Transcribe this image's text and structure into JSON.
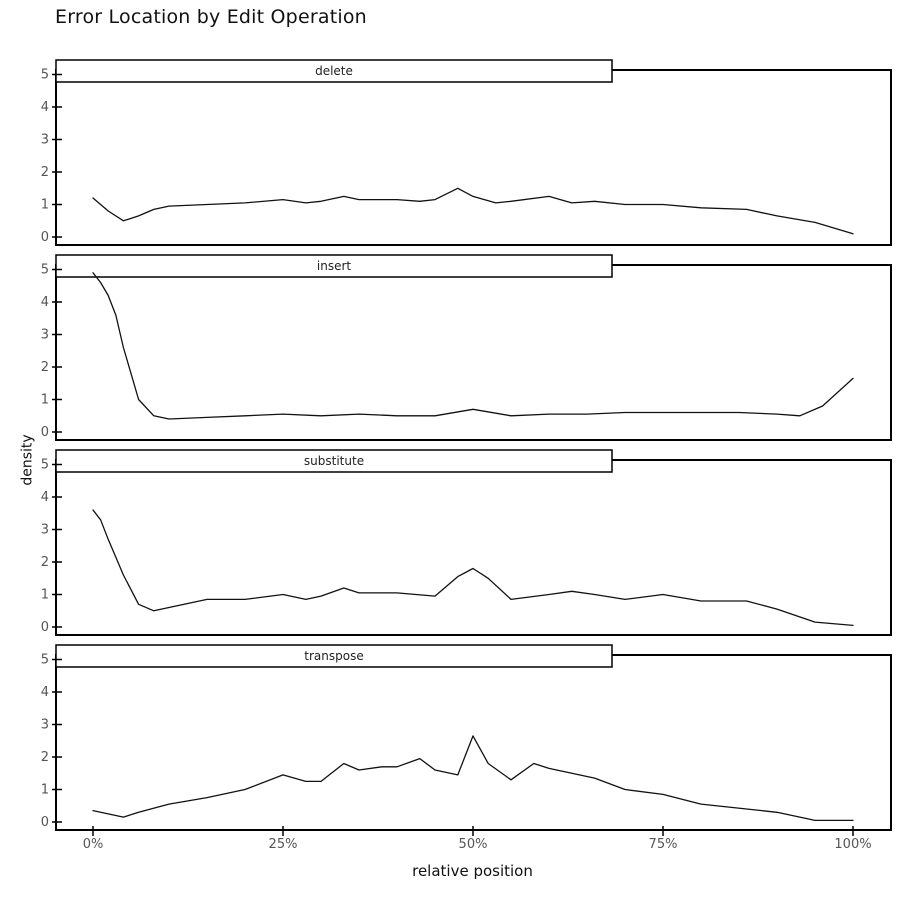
{
  "title": "Error Location by Edit Operation",
  "colors": {
    "line": "#111111",
    "frame": "#000000",
    "strip": "#ffffff",
    "tick_text": "#555555"
  },
  "chart_data": {
    "type": "line",
    "title": "Error Location by Edit Operation",
    "xlabel": "relative position",
    "ylabel": "density",
    "xlim": [
      0,
      1
    ],
    "ylim": [
      0,
      5
    ],
    "x_ticks": [
      0,
      0.25,
      0.5,
      0.75,
      1.0
    ],
    "x_tick_labels": [
      "0%",
      "25%",
      "50%",
      "75%",
      "100%"
    ],
    "y_ticks": [
      0,
      1,
      2,
      3,
      4,
      5
    ],
    "y_tick_labels": [
      "0",
      "1",
      "2",
      "3",
      "4",
      "5"
    ],
    "grid": false,
    "legend": "none",
    "facets": [
      {
        "name": "delete",
        "x": [
          0.0,
          0.02,
          0.04,
          0.06,
          0.08,
          0.1,
          0.15,
          0.2,
          0.25,
          0.28,
          0.3,
          0.33,
          0.35,
          0.38,
          0.4,
          0.43,
          0.45,
          0.48,
          0.5,
          0.53,
          0.55,
          0.6,
          0.63,
          0.66,
          0.7,
          0.75,
          0.8,
          0.86,
          0.9,
          0.95,
          1.0
        ],
        "y": [
          1.2,
          0.8,
          0.5,
          0.65,
          0.85,
          0.95,
          1.0,
          1.05,
          1.15,
          1.05,
          1.1,
          1.25,
          1.15,
          1.15,
          1.15,
          1.1,
          1.15,
          1.5,
          1.25,
          1.05,
          1.1,
          1.25,
          1.05,
          1.1,
          1.0,
          1.0,
          0.9,
          0.85,
          0.65,
          0.45,
          0.1
        ]
      },
      {
        "name": "insert",
        "x": [
          0.0,
          0.01,
          0.02,
          0.03,
          0.04,
          0.06,
          0.08,
          0.1,
          0.15,
          0.2,
          0.25,
          0.3,
          0.35,
          0.4,
          0.45,
          0.5,
          0.55,
          0.6,
          0.65,
          0.7,
          0.75,
          0.8,
          0.85,
          0.9,
          0.93,
          0.96,
          1.0
        ],
        "y": [
          4.9,
          4.6,
          4.2,
          3.6,
          2.6,
          1.0,
          0.5,
          0.4,
          0.45,
          0.5,
          0.55,
          0.5,
          0.55,
          0.5,
          0.5,
          0.7,
          0.5,
          0.55,
          0.55,
          0.6,
          0.6,
          0.6,
          0.6,
          0.55,
          0.5,
          0.8,
          1.65
        ]
      },
      {
        "name": "substitute",
        "x": [
          0.0,
          0.01,
          0.02,
          0.04,
          0.06,
          0.08,
          0.1,
          0.15,
          0.2,
          0.25,
          0.28,
          0.3,
          0.33,
          0.35,
          0.4,
          0.45,
          0.48,
          0.5,
          0.52,
          0.55,
          0.6,
          0.63,
          0.66,
          0.7,
          0.75,
          0.8,
          0.86,
          0.9,
          0.95,
          1.0
        ],
        "y": [
          3.6,
          3.3,
          2.7,
          1.6,
          0.7,
          0.5,
          0.6,
          0.85,
          0.85,
          1.0,
          0.85,
          0.95,
          1.2,
          1.05,
          1.05,
          0.95,
          1.55,
          1.8,
          1.5,
          0.85,
          1.0,
          1.1,
          1.0,
          0.85,
          1.0,
          0.8,
          0.8,
          0.55,
          0.15,
          0.05
        ]
      },
      {
        "name": "transpose",
        "x": [
          0.0,
          0.02,
          0.04,
          0.06,
          0.1,
          0.15,
          0.2,
          0.25,
          0.28,
          0.3,
          0.33,
          0.35,
          0.38,
          0.4,
          0.43,
          0.45,
          0.48,
          0.5,
          0.52,
          0.55,
          0.58,
          0.6,
          0.63,
          0.66,
          0.7,
          0.75,
          0.8,
          0.86,
          0.9,
          0.95,
          1.0
        ],
        "y": [
          0.35,
          0.25,
          0.15,
          0.3,
          0.55,
          0.75,
          1.0,
          1.45,
          1.25,
          1.25,
          1.8,
          1.6,
          1.7,
          1.7,
          1.95,
          1.6,
          1.45,
          2.65,
          1.8,
          1.3,
          1.8,
          1.65,
          1.5,
          1.35,
          1.0,
          0.85,
          0.55,
          0.4,
          0.3,
          0.05,
          0.05
        ]
      }
    ]
  }
}
